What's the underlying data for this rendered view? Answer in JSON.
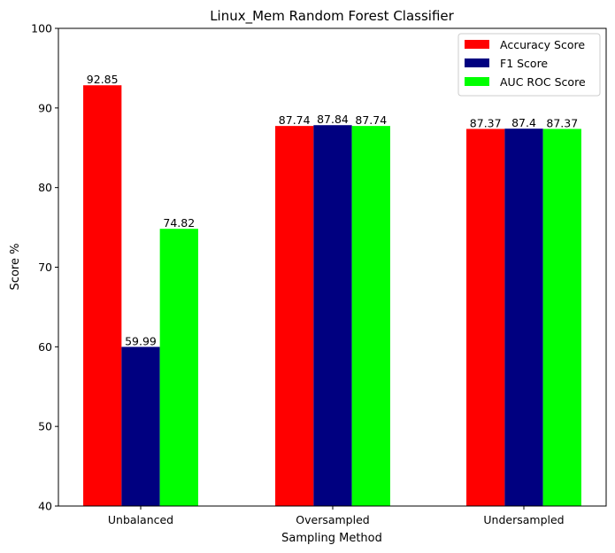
{
  "chart_data": {
    "type": "bar",
    "title": "Linux_Mem Random Forest Classifier",
    "xlabel": "Sampling Method",
    "ylabel": "Score %",
    "categories": [
      "Unbalanced",
      "Oversampled",
      "Undersampled"
    ],
    "ylim": [
      40,
      100
    ],
    "yticks": [
      40,
      50,
      60,
      70,
      80,
      90,
      100
    ],
    "grid": false,
    "legend_position": "top-right",
    "series": [
      {
        "name": "Accuracy Score",
        "color": "#ff0000",
        "values": [
          92.85,
          87.74,
          87.37
        ],
        "labels": [
          "92.85",
          "87.74",
          "87.37"
        ]
      },
      {
        "name": "F1 Score",
        "color": "#000080",
        "values": [
          59.99,
          87.84,
          87.4
        ],
        "labels": [
          "59.99",
          "87.84",
          "87.4"
        ]
      },
      {
        "name": "AUC ROC Score",
        "color": "#00ff00",
        "values": [
          74.82,
          87.74,
          87.37
        ],
        "labels": [
          "74.82",
          "87.74",
          "87.37"
        ]
      }
    ]
  }
}
